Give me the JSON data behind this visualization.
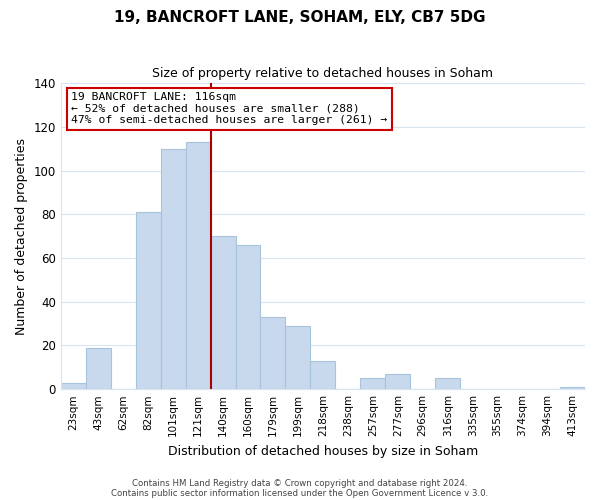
{
  "title": "19, BANCROFT LANE, SOHAM, ELY, CB7 5DG",
  "subtitle": "Size of property relative to detached houses in Soham",
  "xlabel": "Distribution of detached houses by size in Soham",
  "ylabel": "Number of detached properties",
  "bar_labels": [
    "23sqm",
    "43sqm",
    "62sqm",
    "82sqm",
    "101sqm",
    "121sqm",
    "140sqm",
    "160sqm",
    "179sqm",
    "199sqm",
    "218sqm",
    "238sqm",
    "257sqm",
    "277sqm",
    "296sqm",
    "316sqm",
    "335sqm",
    "355sqm",
    "374sqm",
    "394sqm",
    "413sqm"
  ],
  "bar_heights": [
    3,
    19,
    0,
    81,
    110,
    113,
    70,
    66,
    33,
    29,
    13,
    0,
    5,
    7,
    0,
    5,
    0,
    0,
    0,
    0,
    1
  ],
  "bar_color": "#c8d9ed",
  "bar_edge_color": "#a8c4dc",
  "vline_x": 5.5,
  "vline_color": "#aa0000",
  "annotation_title": "19 BANCROFT LANE: 116sqm",
  "annotation_line1": "← 52% of detached houses are smaller (288)",
  "annotation_line2": "47% of semi-detached houses are larger (261) →",
  "annotation_box_color": "#ffffff",
  "annotation_box_edge": "#cc0000",
  "ylim": [
    0,
    140
  ],
  "yticks": [
    0,
    20,
    40,
    60,
    80,
    100,
    120,
    140
  ],
  "footer1": "Contains HM Land Registry data © Crown copyright and database right 2024.",
  "footer2": "Contains public sector information licensed under the Open Government Licence v 3.0.",
  "bg_color": "#ffffff",
  "grid_color": "#d8e4f0",
  "title_fontsize": 11,
  "subtitle_fontsize": 9
}
